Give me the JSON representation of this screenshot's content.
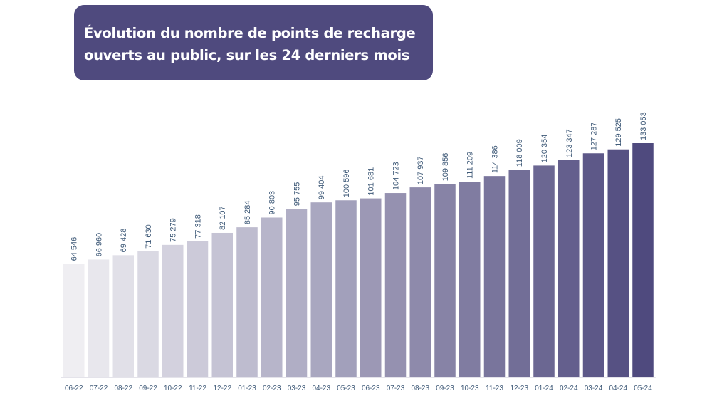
{
  "title": "Évolution du nombre de points de recharge ouverts au public, sur les 24 derniers mois",
  "title_lines": [
    "Évolution du nombre de points de recharge",
    "ouverts au public, sur les 24 derniers mois"
  ],
  "colors": {
    "title_background": "#4f4a7e",
    "title_text": "#ffffff",
    "bar_start": "#efeef2",
    "bar_end": "#4f4a7e",
    "label_text": "#3f5a78"
  },
  "chart_data": {
    "type": "bar",
    "title": "Évolution du nombre de points de recharge ouverts au public, sur les 24 derniers mois",
    "xlabel": "",
    "ylabel": "",
    "grid": false,
    "legend": "none",
    "ylim": [
      0,
      133053
    ],
    "categories": [
      "06-22",
      "07-22",
      "08-22",
      "09-22",
      "10-22",
      "11-22",
      "12-22",
      "01-23",
      "02-23",
      "03-23",
      "04-23",
      "05-23",
      "06-23",
      "07-23",
      "08-23",
      "09-23",
      "10-23",
      "11-23",
      "12-23",
      "01-24",
      "02-24",
      "03-24",
      "04-24",
      "05-24"
    ],
    "values": [
      64546,
      66960,
      69428,
      71630,
      75279,
      77318,
      82107,
      85284,
      90803,
      95755,
      99404,
      100596,
      101681,
      104723,
      107937,
      109856,
      111209,
      114386,
      118009,
      120354,
      123347,
      127287,
      129525,
      133053
    ],
    "value_labels": [
      "64 546",
      "66 960",
      "69 428",
      "71 630",
      "75 279",
      "77 318",
      "82 107",
      "85 284",
      "90 803",
      "95 755",
      "99 404",
      "100 596",
      "101 681",
      "104 723",
      "107 937",
      "109 856",
      "111 209",
      "114 386",
      "118 009",
      "120 354",
      "123 347",
      "127 287",
      "129 525",
      "133 053"
    ]
  }
}
